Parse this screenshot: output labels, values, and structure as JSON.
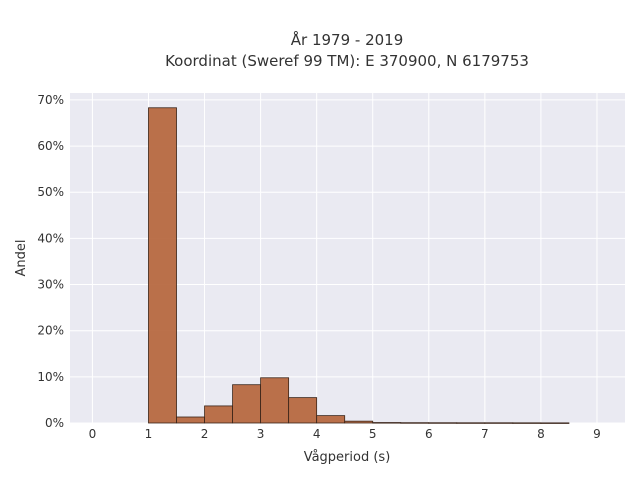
{
  "chart_data": {
    "type": "bar",
    "title_lines": [
      "År 1979 - 2019",
      "Koordinat (Sweref 99 TM): E 370900, N 6179753"
    ],
    "xlabel": "Vågperiod (s)",
    "ylabel": "Andel",
    "xlim": [
      -0.4,
      9.5
    ],
    "ylim": [
      0,
      0.715
    ],
    "x_ticks": [
      0,
      1,
      2,
      3,
      4,
      5,
      6,
      7,
      8,
      9
    ],
    "y_ticks": [
      0,
      0.1,
      0.2,
      0.3,
      0.4,
      0.5,
      0.6,
      0.7
    ],
    "y_tick_labels": [
      "0%",
      "10%",
      "20%",
      "30%",
      "40%",
      "50%",
      "60%",
      "70%"
    ],
    "bin_width": 0.5,
    "bins": [
      {
        "x0": 1.0,
        "value": 0.683
      },
      {
        "x0": 1.5,
        "value": 0.013
      },
      {
        "x0": 2.0,
        "value": 0.037
      },
      {
        "x0": 2.5,
        "value": 0.083
      },
      {
        "x0": 3.0,
        "value": 0.098
      },
      {
        "x0": 3.5,
        "value": 0.055
      },
      {
        "x0": 4.0,
        "value": 0.016
      },
      {
        "x0": 4.5,
        "value": 0.004
      },
      {
        "x0": 5.0,
        "value": 0.001
      },
      {
        "x0": 5.5,
        "value": 0.0007
      },
      {
        "x0": 6.0,
        "value": 0.0006
      },
      {
        "x0": 6.5,
        "value": 0.0005
      },
      {
        "x0": 7.0,
        "value": 0.0005
      },
      {
        "x0": 7.5,
        "value": 0.0004
      },
      {
        "x0": 8.0,
        "value": 0.0003
      }
    ],
    "grid": true,
    "colors": {
      "bar": "#b5653c",
      "plot_background": "#eaeaf2",
      "grid": "#ffffff"
    }
  }
}
